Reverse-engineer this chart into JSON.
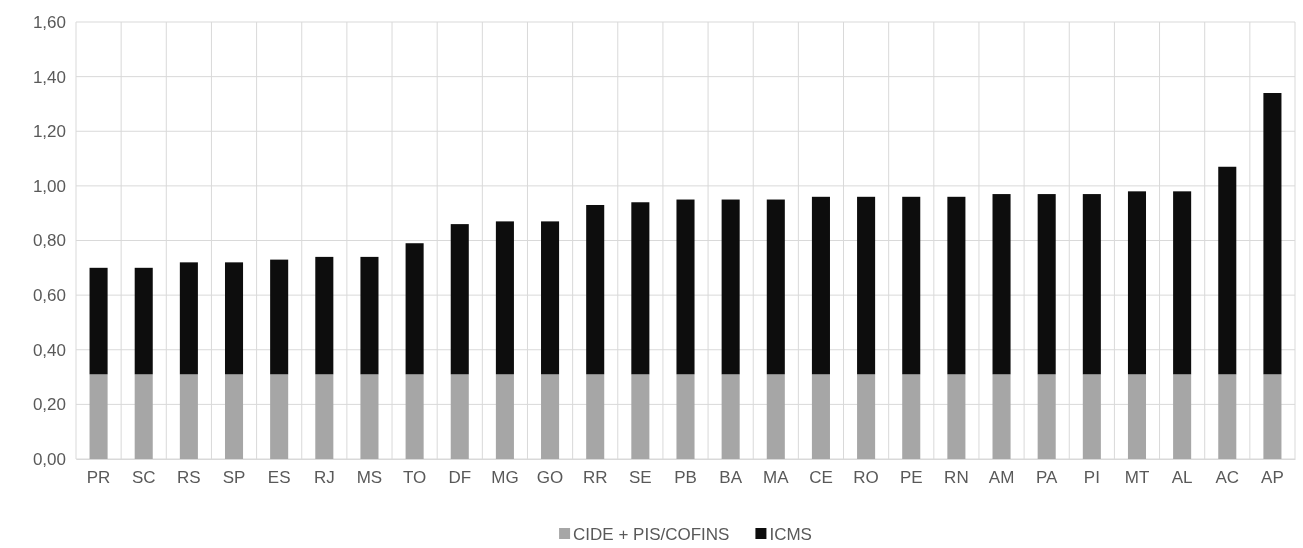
{
  "chart_data": {
    "type": "bar",
    "stacked": true,
    "categories": [
      "PR",
      "SC",
      "RS",
      "SP",
      "ES",
      "RJ",
      "MS",
      "TO",
      "DF",
      "MG",
      "GO",
      "RR",
      "SE",
      "PB",
      "BA",
      "MA",
      "CE",
      "RO",
      "PE",
      "RN",
      "AM",
      "PA",
      "PI",
      "MT",
      "AL",
      "AC",
      "AP"
    ],
    "series": [
      {
        "name": "CIDE + PIS/COFINS",
        "color": "#a6a6a6",
        "values": [
          0.31,
          0.31,
          0.31,
          0.31,
          0.31,
          0.31,
          0.31,
          0.31,
          0.31,
          0.31,
          0.31,
          0.31,
          0.31,
          0.31,
          0.31,
          0.31,
          0.31,
          0.31,
          0.31,
          0.31,
          0.31,
          0.31,
          0.31,
          0.31,
          0.31,
          0.31,
          0.31
        ]
      },
      {
        "name": "ICMS",
        "color": "#0d0d0d",
        "values": [
          0.39,
          0.39,
          0.41,
          0.41,
          0.42,
          0.43,
          0.43,
          0.48,
          0.55,
          0.56,
          0.56,
          0.62,
          0.63,
          0.64,
          0.64,
          0.64,
          0.65,
          0.65,
          0.65,
          0.65,
          0.66,
          0.66,
          0.66,
          0.67,
          0.67,
          0.76,
          1.03
        ]
      }
    ],
    "ylim": [
      0,
      1.6
    ],
    "yticks": [
      {
        "value": 0,
        "label": "0,00"
      },
      {
        "value": 0.2,
        "label": "0,20"
      },
      {
        "value": 0.4,
        "label": "0,40"
      },
      {
        "value": 0.6,
        "label": "0,60"
      },
      {
        "value": 0.8,
        "label": "0,80"
      },
      {
        "value": 1,
        "label": "1,00"
      },
      {
        "value": 1.2,
        "label": "1,20"
      },
      {
        "value": 1.4,
        "label": "1,40"
      },
      {
        "value": 1.6,
        "label": "1,60"
      }
    ],
    "grid": true,
    "legend": "bottom"
  }
}
